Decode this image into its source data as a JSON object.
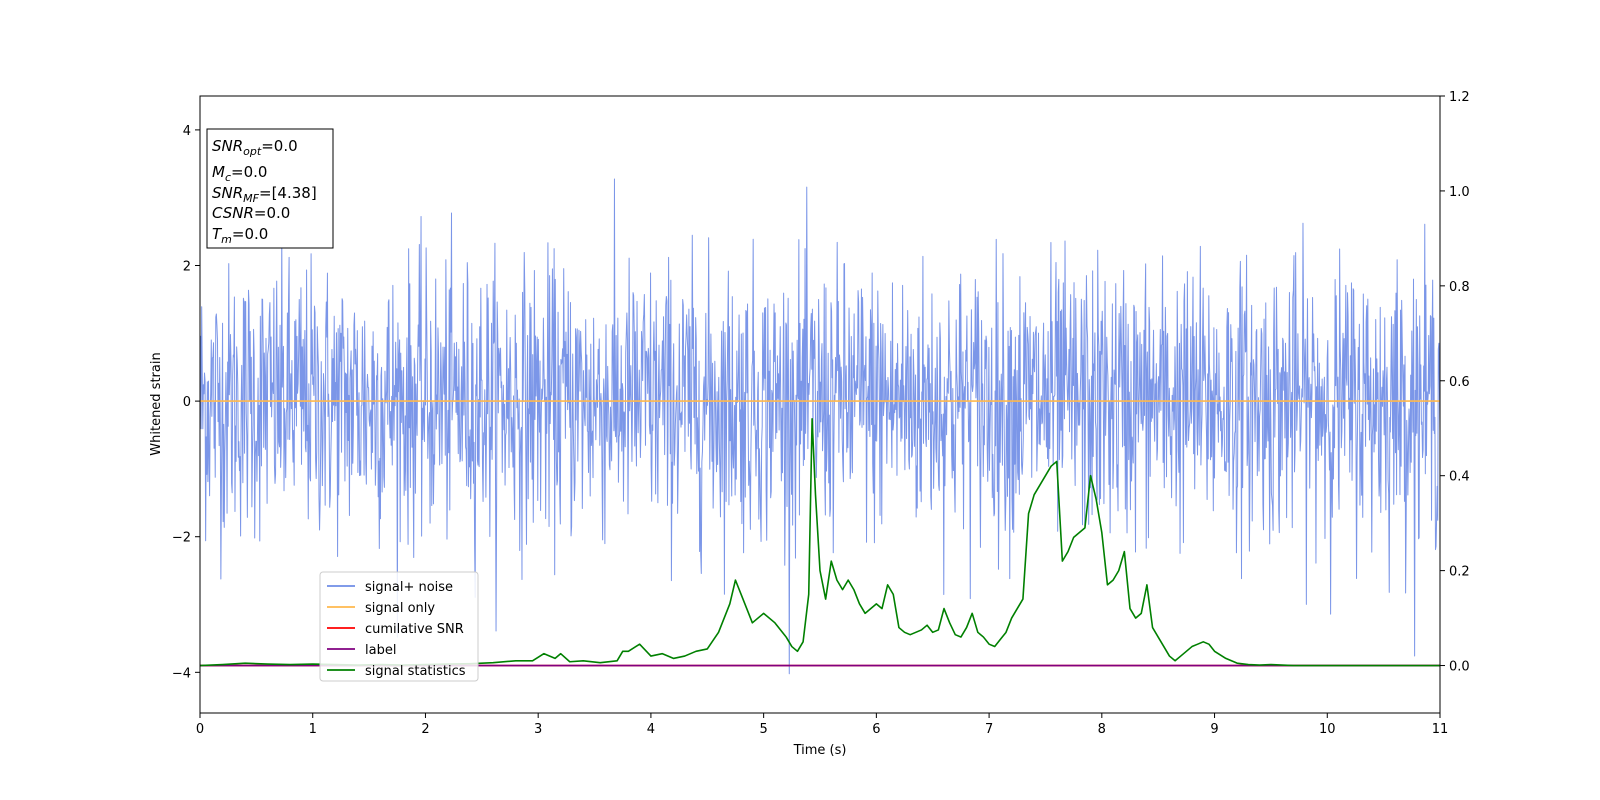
{
  "chart_data": {
    "type": "line",
    "xlabel": "Time (s)",
    "ylabel": "Whitened strain",
    "xlim": [
      0,
      11
    ],
    "ylim": [
      -4.6,
      4.5
    ],
    "y2lim": [
      -0.1,
      1.2
    ],
    "x_ticks": [
      "0",
      "1",
      "2",
      "3",
      "4",
      "5",
      "6",
      "7",
      "8",
      "9",
      "10",
      "11"
    ],
    "y_ticks": [
      "4",
      "2",
      "0",
      "−2",
      "−4"
    ],
    "y2_ticks": [
      "1.2",
      "1.0",
      "0.8",
      "0.6",
      "0.4",
      "0.2",
      "0.0"
    ],
    "info_box": {
      "snr_opt": {
        "sym": "SNR",
        "sub": "opt",
        "value": "=0.0"
      },
      "mc": {
        "sym": "M",
        "sub": "c",
        "value": "=0.0"
      },
      "snr_mf": {
        "sym": "SNR",
        "sub": "MF",
        "value": "=[4.38]"
      },
      "csnr": {
        "sym": "CSNR",
        "value": "=0.0"
      },
      "tm": {
        "sym": "T",
        "sub": "m",
        "value": "=0.0"
      }
    },
    "legend": {
      "placement": "lower-left",
      "entries": [
        {
          "label": "signal+ noise",
          "color": "#6f8de6"
        },
        {
          "label": "signal only",
          "color": "#ffb84d"
        },
        {
          "label": "cumilative SNR",
          "color": "#ff0000"
        },
        {
          "label": "label",
          "color": "#800080"
        },
        {
          "label": "signal statistics",
          "color": "#008000"
        }
      ]
    },
    "series": [
      {
        "name": "signal+ noise",
        "axis": "left",
        "color": "#7b96e8",
        "noise": {
          "sigma": 1.0,
          "mean": 0.0,
          "n_points": 2200,
          "x_range": [
            0,
            11
          ]
        }
      },
      {
        "name": "signal only",
        "axis": "left",
        "color": "#ffb84d",
        "x": [
          0,
          11
        ],
        "values": [
          0,
          0
        ]
      },
      {
        "name": "cumilative SNR",
        "axis": "right",
        "color": "#ff0000",
        "x": [
          0,
          11
        ],
        "values": [
          0,
          0
        ]
      },
      {
        "name": "label",
        "axis": "right",
        "color": "#800080",
        "x": [
          0,
          11
        ],
        "values": [
          0,
          0
        ]
      },
      {
        "name": "signal statistics",
        "axis": "right",
        "color": "#008000",
        "x": [
          0,
          0.2,
          0.4,
          0.6,
          0.8,
          1.0,
          1.2,
          1.4,
          1.6,
          1.8,
          2.0,
          2.2,
          2.4,
          2.6,
          2.8,
          2.95,
          3.05,
          3.15,
          3.2,
          3.28,
          3.4,
          3.55,
          3.7,
          3.75,
          3.8,
          3.9,
          4.0,
          4.1,
          4.2,
          4.3,
          4.4,
          4.5,
          4.6,
          4.7,
          4.75,
          4.8,
          4.9,
          5.0,
          5.1,
          5.2,
          5.25,
          5.3,
          5.35,
          5.4,
          5.43,
          5.46,
          5.5,
          5.55,
          5.6,
          5.65,
          5.7,
          5.75,
          5.8,
          5.85,
          5.9,
          6.0,
          6.05,
          6.1,
          6.15,
          6.2,
          6.25,
          6.3,
          6.35,
          6.4,
          6.45,
          6.5,
          6.55,
          6.6,
          6.65,
          6.7,
          6.75,
          6.8,
          6.85,
          6.9,
          6.95,
          7.0,
          7.05,
          7.1,
          7.15,
          7.2,
          7.25,
          7.3,
          7.35,
          7.4,
          7.45,
          7.5,
          7.55,
          7.6,
          7.65,
          7.7,
          7.75,
          7.8,
          7.85,
          7.9,
          7.95,
          8.0,
          8.05,
          8.1,
          8.15,
          8.2,
          8.25,
          8.3,
          8.35,
          8.4,
          8.45,
          8.5,
          8.55,
          8.6,
          8.65,
          8.7,
          8.8,
          8.85,
          8.9,
          8.95,
          9.0,
          9.1,
          9.2,
          9.3,
          9.4,
          9.5,
          9.6,
          9.7,
          9.8,
          10.0,
          10.5,
          11.0
        ],
        "values": [
          0.0,
          0.002,
          0.005,
          0.003,
          0.002,
          0.003,
          0.002,
          0.001,
          0.002,
          0.001,
          0.002,
          0.003,
          0.004,
          0.006,
          0.01,
          0.01,
          0.025,
          0.015,
          0.025,
          0.008,
          0.01,
          0.006,
          0.01,
          0.03,
          0.03,
          0.045,
          0.02,
          0.025,
          0.015,
          0.02,
          0.03,
          0.035,
          0.07,
          0.13,
          0.18,
          0.15,
          0.09,
          0.11,
          0.09,
          0.06,
          0.04,
          0.03,
          0.05,
          0.15,
          0.52,
          0.36,
          0.2,
          0.14,
          0.22,
          0.18,
          0.16,
          0.18,
          0.16,
          0.13,
          0.11,
          0.13,
          0.12,
          0.17,
          0.15,
          0.08,
          0.07,
          0.065,
          0.07,
          0.075,
          0.085,
          0.07,
          0.075,
          0.12,
          0.09,
          0.065,
          0.06,
          0.08,
          0.11,
          0.07,
          0.06,
          0.045,
          0.04,
          0.055,
          0.07,
          0.1,
          0.12,
          0.14,
          0.32,
          0.36,
          0.38,
          0.4,
          0.42,
          0.43,
          0.22,
          0.24,
          0.27,
          0.28,
          0.29,
          0.4,
          0.35,
          0.28,
          0.17,
          0.18,
          0.2,
          0.24,
          0.12,
          0.1,
          0.11,
          0.17,
          0.08,
          0.06,
          0.04,
          0.02,
          0.01,
          0.02,
          0.04,
          0.045,
          0.05,
          0.045,
          0.03,
          0.015,
          0.005,
          0.002,
          0.001,
          0.002,
          0.001,
          0.0,
          0.0,
          0.0,
          0.0,
          0.0
        ]
      }
    ]
  }
}
